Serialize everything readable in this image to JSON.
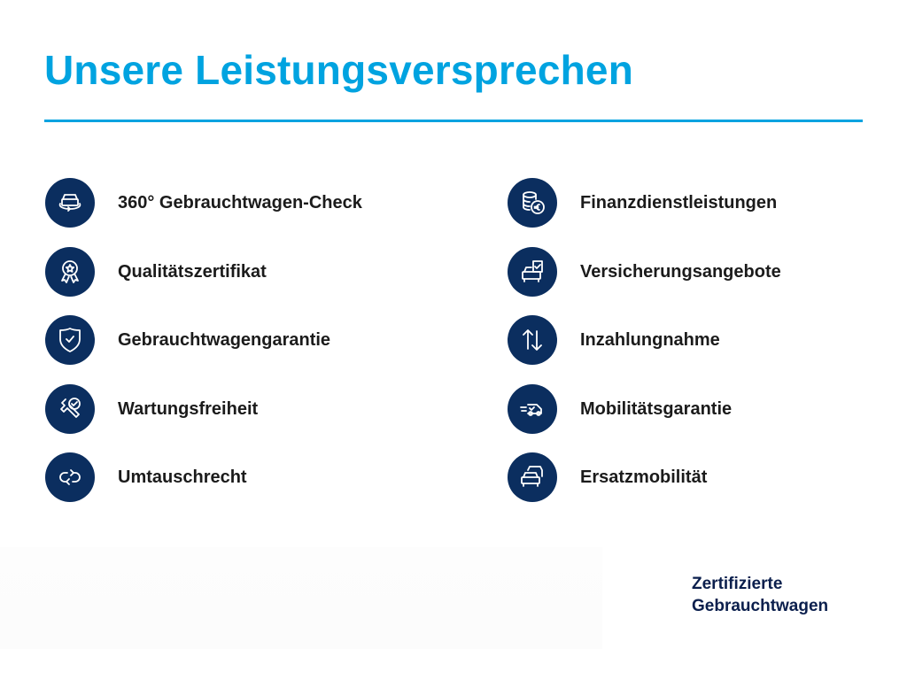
{
  "header": {
    "title": "Unsere Leistungsversprechen"
  },
  "colors": {
    "accent": "#00a3e0",
    "icon_background": "#0b2e5f",
    "footer_text": "#0b1f4d"
  },
  "left_items": [
    {
      "label": "360° Gebrauchtwagen-Check",
      "icon": "car-360-icon"
    },
    {
      "label": "Qualitätszertifikat",
      "icon": "award-ribbon-icon"
    },
    {
      "label": "Gebrauchtwagengarantie",
      "icon": "shield-check-icon"
    },
    {
      "label": "Wartungsfreiheit",
      "icon": "wrench-check-icon"
    },
    {
      "label": "Umtauschrecht",
      "icon": "exchange-arrows-icon"
    }
  ],
  "right_items": [
    {
      "label": "Finanzdienstleistungen",
      "icon": "coins-euro-icon"
    },
    {
      "label": "Versicherungsangebote",
      "icon": "car-document-check-icon"
    },
    {
      "label": "Inzahlungnahme",
      "icon": "up-down-arrows-icon"
    },
    {
      "label": "Mobilitätsgarantie",
      "icon": "van-speed-check-icon"
    },
    {
      "label": "Ersatzmobilität",
      "icon": "two-cars-icon"
    }
  ],
  "footer": {
    "line1": "Zertifizierte",
    "line2": "Gebrauchtwagen"
  }
}
